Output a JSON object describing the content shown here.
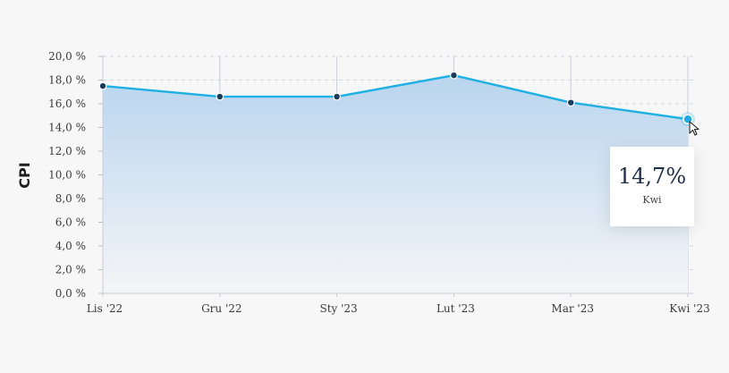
{
  "chart_data": {
    "type": "area",
    "ylabel": "CPI",
    "categories": [
      "Lis '22",
      "Gru '22",
      "Sty '23",
      "Lut '23",
      "Mar '23",
      "Kwi '23"
    ],
    "values": [
      17.5,
      16.6,
      16.6,
      18.4,
      16.1,
      14.7
    ],
    "ylim": [
      0,
      20
    ],
    "ytick_step": 2,
    "ytick_labels": [
      "0,0 %",
      "2,0 %",
      "4,0 %",
      "6,0 %",
      "8,0 %",
      "10,0 %",
      "12,0 %",
      "14,0 %",
      "16,0 %",
      "18,0 %",
      "20,0 %"
    ],
    "grid": true,
    "colors": {
      "line": "#1fb0e3",
      "marker": "#1c3a5c",
      "fill_top": "#b9d5ee",
      "fill_bottom": "#f4f5f7",
      "highlight": "#27a9e3"
    },
    "highlighted_index": 5
  },
  "tooltip": {
    "value": "14,7%",
    "label": "Kwi"
  },
  "cursor_icon": "mouse-pointer-icon"
}
